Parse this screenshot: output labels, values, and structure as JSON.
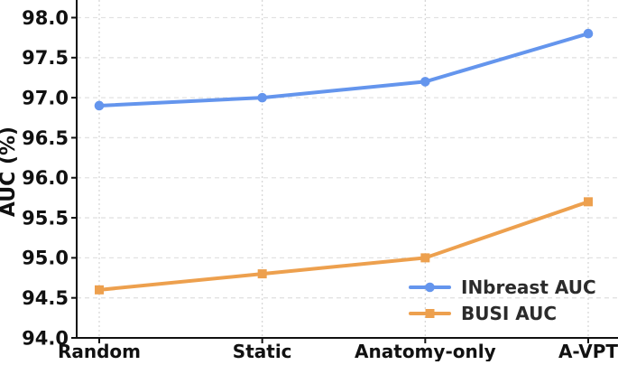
{
  "chart_data": {
    "type": "line",
    "categories": [
      "Random",
      "Static",
      "Anatomy-only",
      "A-VPT"
    ],
    "series": [
      {
        "name": "INbreast AUC",
        "values": [
          96.9,
          97.0,
          97.2,
          97.8
        ],
        "color": "#6495ED",
        "marker": "circle"
      },
      {
        "name": "BUSI AUC",
        "values": [
          94.6,
          94.8,
          95.0,
          95.7
        ],
        "color": "#EDA04E",
        "marker": "square"
      }
    ],
    "title": "",
    "xlabel": "",
    "ylabel": "AUC (%)",
    "ylim": [
      94.0,
      98.22
    ],
    "yticks": [
      94.0,
      94.5,
      95.0,
      95.5,
      96.0,
      96.5,
      97.0,
      97.5,
      98.0
    ],
    "ytick_labels": [
      "94.0",
      "94.5",
      "95.0",
      "95.5",
      "96.0",
      "96.5",
      "97.0",
      "97.5",
      "98.0"
    ],
    "grid": true,
    "legend_position": "lower right"
  },
  "colors": {
    "axis": "#111111",
    "tick_label": "#111111",
    "grid_horizontal": "#e2e2e2",
    "grid_vertical": "#d4d4d4",
    "legend_text": "#2b2b2b",
    "background": "#ffffff"
  }
}
